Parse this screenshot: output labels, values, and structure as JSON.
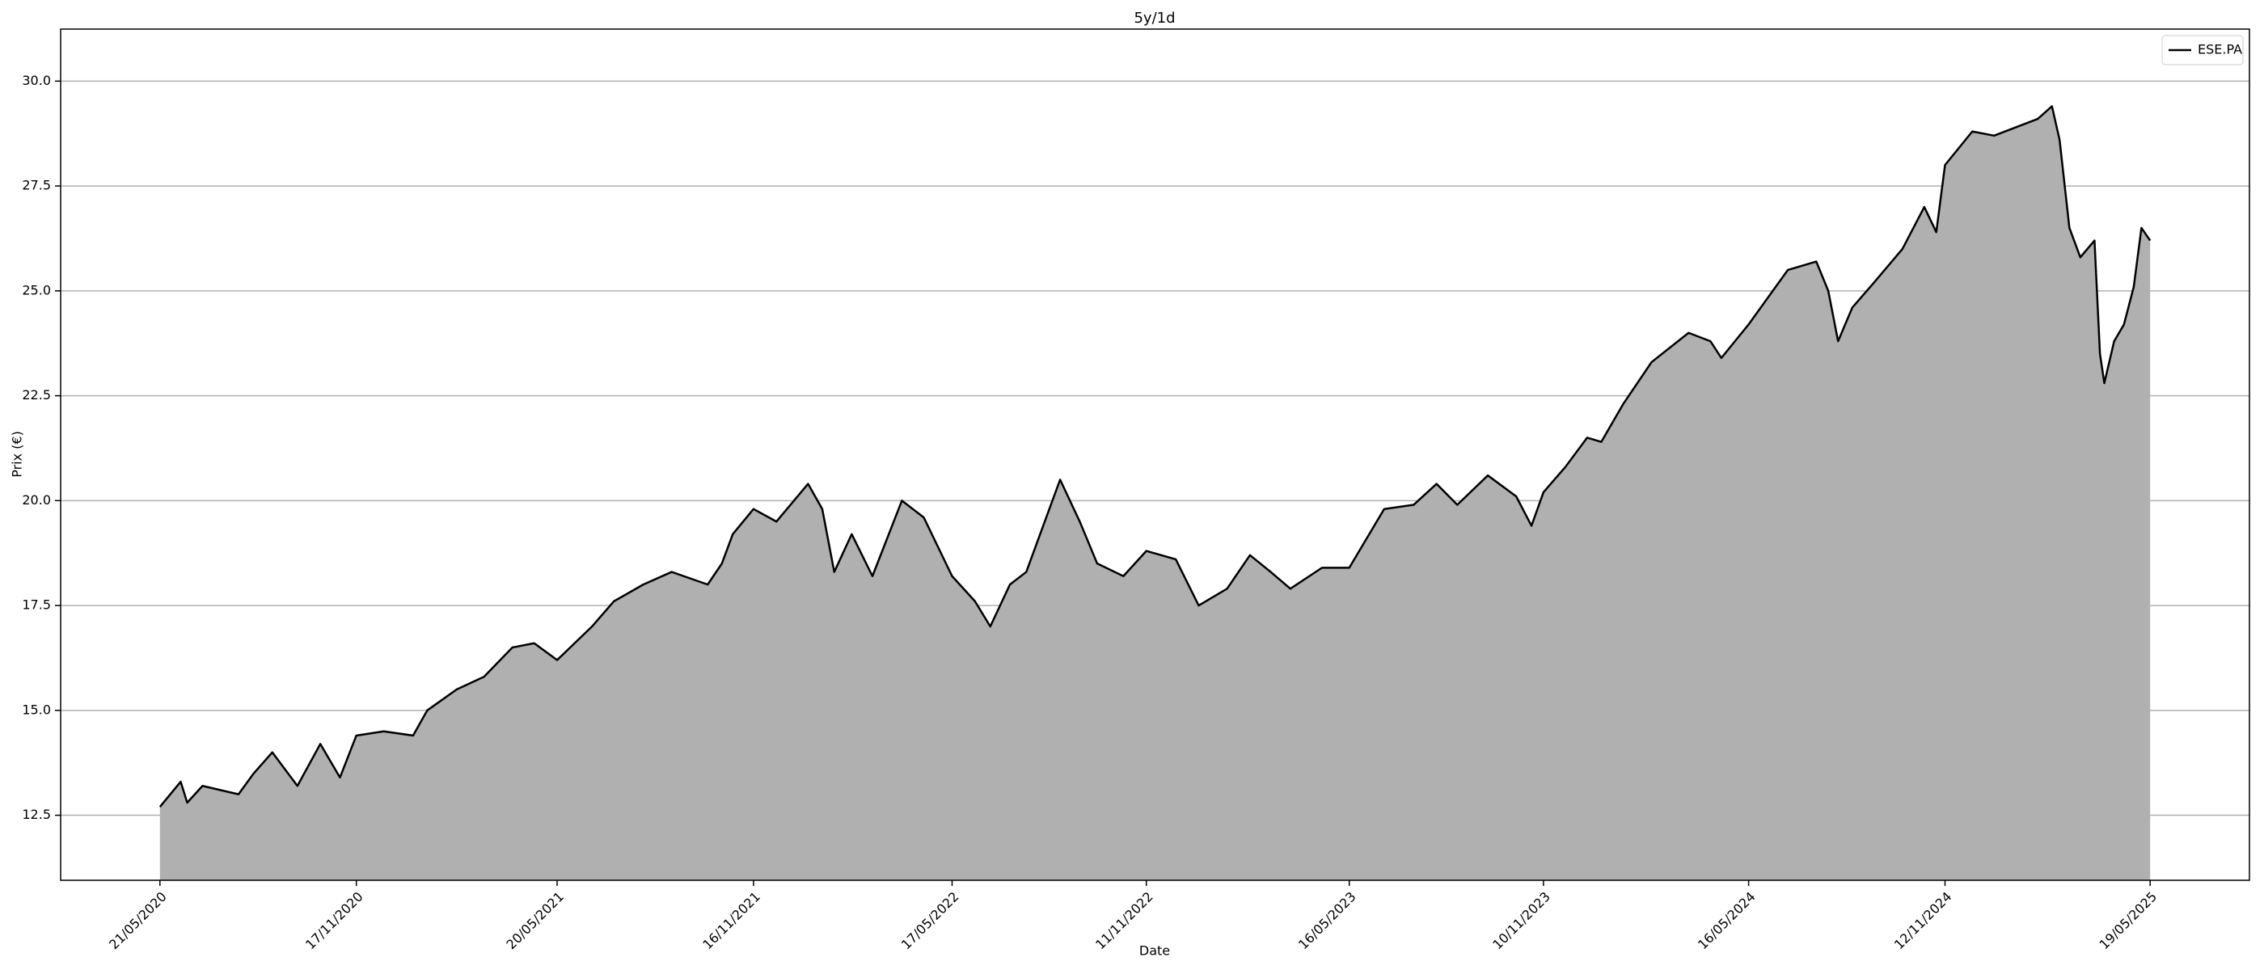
{
  "chart_data": {
    "type": "line",
    "title": "5y/1d",
    "xlabel": "Date",
    "ylabel": "Prix (€)",
    "legend": "upper right",
    "grid": "y",
    "x": [
      "2020-05-21",
      "2020-06-09",
      "2020-06-15",
      "2020-06-29",
      "2020-08-01",
      "2020-08-15",
      "2020-09-01",
      "2020-09-24",
      "2020-10-15",
      "2020-11-02",
      "2020-11-17",
      "2020-12-12",
      "2021-01-08",
      "2021-01-21",
      "2021-02-17",
      "2021-03-14",
      "2021-04-09",
      "2021-04-29",
      "2021-05-20",
      "2021-06-01",
      "2021-06-21",
      "2021-07-11",
      "2021-08-07",
      "2021-09-02",
      "2021-10-05",
      "2021-10-18",
      "2021-10-28",
      "2021-11-16",
      "2021-12-07",
      "2022-01-05",
      "2022-01-18",
      "2022-01-29",
      "2022-02-14",
      "2022-03-05",
      "2022-04-01",
      "2022-04-21",
      "2022-05-17",
      "2022-06-07",
      "2022-06-21",
      "2022-07-09",
      "2022-07-24",
      "2022-08-24",
      "2022-09-11",
      "2022-09-27",
      "2022-10-21",
      "2022-11-11",
      "2022-12-08",
      "2022-12-29",
      "2023-01-24",
      "2023-02-14",
      "2023-03-05",
      "2023-03-23",
      "2023-04-21",
      "2023-05-16",
      "2023-06-17",
      "2023-07-14",
      "2023-08-04",
      "2023-08-23",
      "2023-09-20",
      "2023-10-16",
      "2023-10-30",
      "2023-11-10",
      "2023-11-30",
      "2023-12-20",
      "2024-01-02",
      "2024-01-22",
      "2024-02-17",
      "2024-03-22",
      "2024-04-11",
      "2024-04-21",
      "2024-05-16",
      "2024-06-21",
      "2024-07-17",
      "2024-07-28",
      "2024-08-06",
      "2024-08-19",
      "2024-09-08",
      "2024-10-04",
      "2024-10-24",
      "2024-11-04",
      "2024-11-12",
      "2024-12-07",
      "2024-12-27",
      "2025-01-16",
      "2025-02-05",
      "2025-02-18",
      "2025-02-25",
      "2025-03-06",
      "2025-03-16",
      "2025-03-29",
      "2025-04-03",
      "2025-04-07",
      "2025-04-16",
      "2025-04-25",
      "2025-05-04",
      "2025-05-11",
      "2025-05-19"
    ],
    "series": [
      {
        "name": "ESE.PA",
        "color": "#000000",
        "fill": "#b0b0b0",
        "values": [
          12.7,
          13.3,
          12.8,
          13.2,
          13.0,
          13.5,
          14.0,
          13.2,
          14.2,
          13.4,
          14.4,
          14.5,
          14.4,
          15.0,
          15.5,
          15.8,
          16.5,
          16.6,
          16.2,
          16.5,
          17.0,
          17.6,
          18.0,
          18.3,
          18.0,
          18.5,
          19.2,
          19.8,
          19.5,
          20.4,
          19.8,
          18.3,
          19.2,
          18.2,
          20.0,
          19.6,
          18.2,
          17.6,
          17.0,
          18.0,
          18.3,
          20.5,
          19.5,
          18.5,
          18.2,
          18.8,
          18.6,
          17.5,
          17.9,
          18.7,
          18.3,
          17.9,
          18.4,
          18.4,
          19.8,
          19.9,
          20.4,
          19.9,
          20.6,
          20.1,
          19.4,
          20.2,
          20.8,
          21.5,
          21.4,
          22.3,
          23.3,
          24.0,
          23.8,
          23.4,
          24.2,
          25.5,
          25.7,
          25.0,
          23.8,
          24.6,
          25.2,
          26.0,
          27.0,
          26.4,
          28.0,
          28.8,
          28.7,
          28.9,
          29.1,
          29.4,
          28.6,
          26.5,
          25.8,
          26.2,
          23.5,
          22.8,
          23.8,
          24.2,
          25.1,
          26.5,
          26.2
        ]
      }
    ],
    "xlim": [
      "2020-02-20",
      "2025-08-18"
    ],
    "xticks": [
      {
        "value": "2020-05-21",
        "label": "21/05/2020"
      },
      {
        "value": "2020-11-17",
        "label": "17/11/2020"
      },
      {
        "value": "2021-05-20",
        "label": "20/05/2021"
      },
      {
        "value": "2021-11-16",
        "label": "16/11/2021"
      },
      {
        "value": "2022-05-17",
        "label": "17/05/2022"
      },
      {
        "value": "2022-11-11",
        "label": "11/11/2022"
      },
      {
        "value": "2023-05-16",
        "label": "16/05/2023"
      },
      {
        "value": "2023-11-10",
        "label": "10/11/2023"
      },
      {
        "value": "2024-05-16",
        "label": "16/05/2024"
      },
      {
        "value": "2024-11-12",
        "label": "12/11/2024"
      },
      {
        "value": "2025-05-19",
        "label": "19/05/2025"
      }
    ],
    "ylim": [
      10.95,
      31.24
    ],
    "yticks": [
      12.5,
      {
        "value": 15,
        "label": "15.0"
      },
      17.5,
      {
        "value": 20,
        "label": "20.0"
      },
      22.5,
      {
        "value": 25,
        "label": "25.0"
      },
      27.5,
      {
        "value": 30,
        "label": "30.0"
      }
    ]
  }
}
